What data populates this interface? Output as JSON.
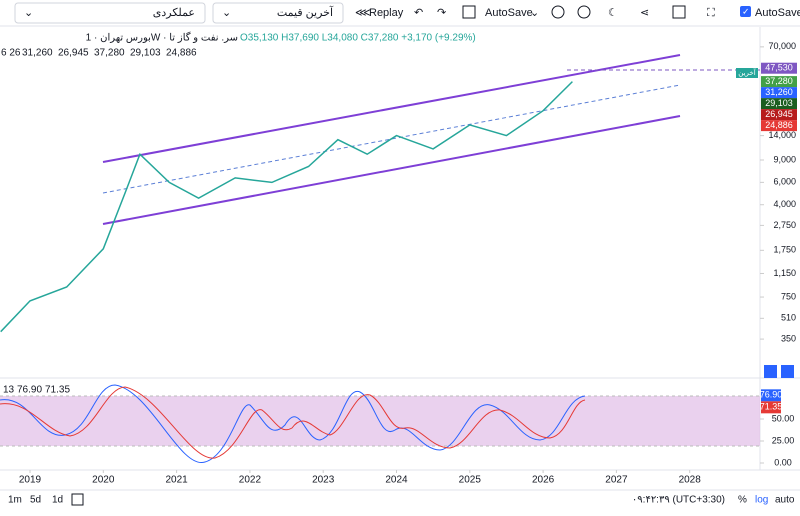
{
  "toolbar": {
    "symbol_menu": "عملکردی",
    "price_menu": "آخرین قیمت",
    "replay": "Replay",
    "autosave": "AutoSave",
    "autosave_check": "AutoSave"
  },
  "legend": {
    "title": "بورس تهران · 1W · سر. نفت و گاز تا",
    "ohlc": "O35,130 H37,690 L34,080 C37,280 +3,170 (+9.29%)",
    "ichimoku_params": "6 26",
    "ichimoku_values": [
      {
        "label": "31,260",
        "color": "#2962ff"
      },
      {
        "label": "26,945",
        "color": "#e53935"
      },
      {
        "label": "37,280",
        "color": "#43a047"
      },
      {
        "label": "29,103",
        "color": "#2e7d32"
      },
      {
        "label": "24,886",
        "color": "#c62828"
      }
    ],
    "stoch_params": "13",
    "stoch_values": [
      {
        "label": "76.90",
        "color": "#2962ff"
      },
      {
        "label": "71.35",
        "color": "#e53935"
      }
    ]
  },
  "chart": {
    "log_scale": true,
    "yticks": [
      {
        "value": 70000,
        "label": "70,000"
      },
      {
        "value": 14000,
        "label": "14,000"
      },
      {
        "value": 9000,
        "label": "9,000"
      },
      {
        "value": 6000,
        "label": "6,000"
      },
      {
        "value": 4000,
        "label": "4,000"
      },
      {
        "value": 2750,
        "label": "2,750"
      },
      {
        "value": 1750,
        "label": "1,750"
      },
      {
        "value": 1150,
        "label": "1,150"
      },
      750,
      510,
      350
    ],
    "price_tags": [
      {
        "value": 47530,
        "label": "47,530",
        "color": "#7e57c2"
      },
      {
        "value": 37280,
        "label": "37,280",
        "color": "#43a047"
      },
      {
        "value": 31260,
        "label": "31,260",
        "color": "#2962ff"
      },
      {
        "value": 29103,
        "label": "29,103",
        "color": "#1b5e20"
      },
      {
        "value": 26945,
        "label": "26,945",
        "color": "#b71c1c"
      },
      {
        "value": 24886,
        "label": "24,886",
        "color": "#e53935"
      }
    ],
    "last_label": "آخرین",
    "xticks": [
      2019,
      2020,
      2021,
      2022,
      2023,
      2024,
      2025,
      2026,
      2027,
      2028
    ],
    "x": [
      2018.6,
      2019.0,
      2019.5,
      2020.0,
      2020.3,
      2020.5,
      2020.9,
      2021.3,
      2021.8,
      2022.3,
      2022.8,
      2023.2,
      2023.6,
      2024.0,
      2024.5,
      2025.0,
      2025.5,
      2026.0,
      2026.4
    ],
    "close": [
      400,
      700,
      900,
      1800,
      5000,
      10000,
      6000,
      4500,
      6500,
      6000,
      8000,
      13000,
      10000,
      14000,
      11000,
      17000,
      14000,
      22000,
      37280
    ],
    "stoch_ticks": [
      {
        "value": 50,
        "label": "50.00"
      },
      {
        "value": 25,
        "label": "25.00"
      },
      {
        "value": 0,
        "label": "0.00"
      }
    ],
    "stoch_tags": [
      {
        "value": 76.9,
        "label": "76.90",
        "color": "#2962ff"
      },
      {
        "value": 71.35,
        "label": "71.35",
        "color": "#e53935"
      }
    ]
  },
  "status": {
    "timeframes": [
      "1m",
      "5d",
      "1d"
    ],
    "clock": "۰۹:۴۲:۳۹ (UTC+3:30)",
    "percent": "%",
    "log": "log",
    "auto": "auto"
  }
}
